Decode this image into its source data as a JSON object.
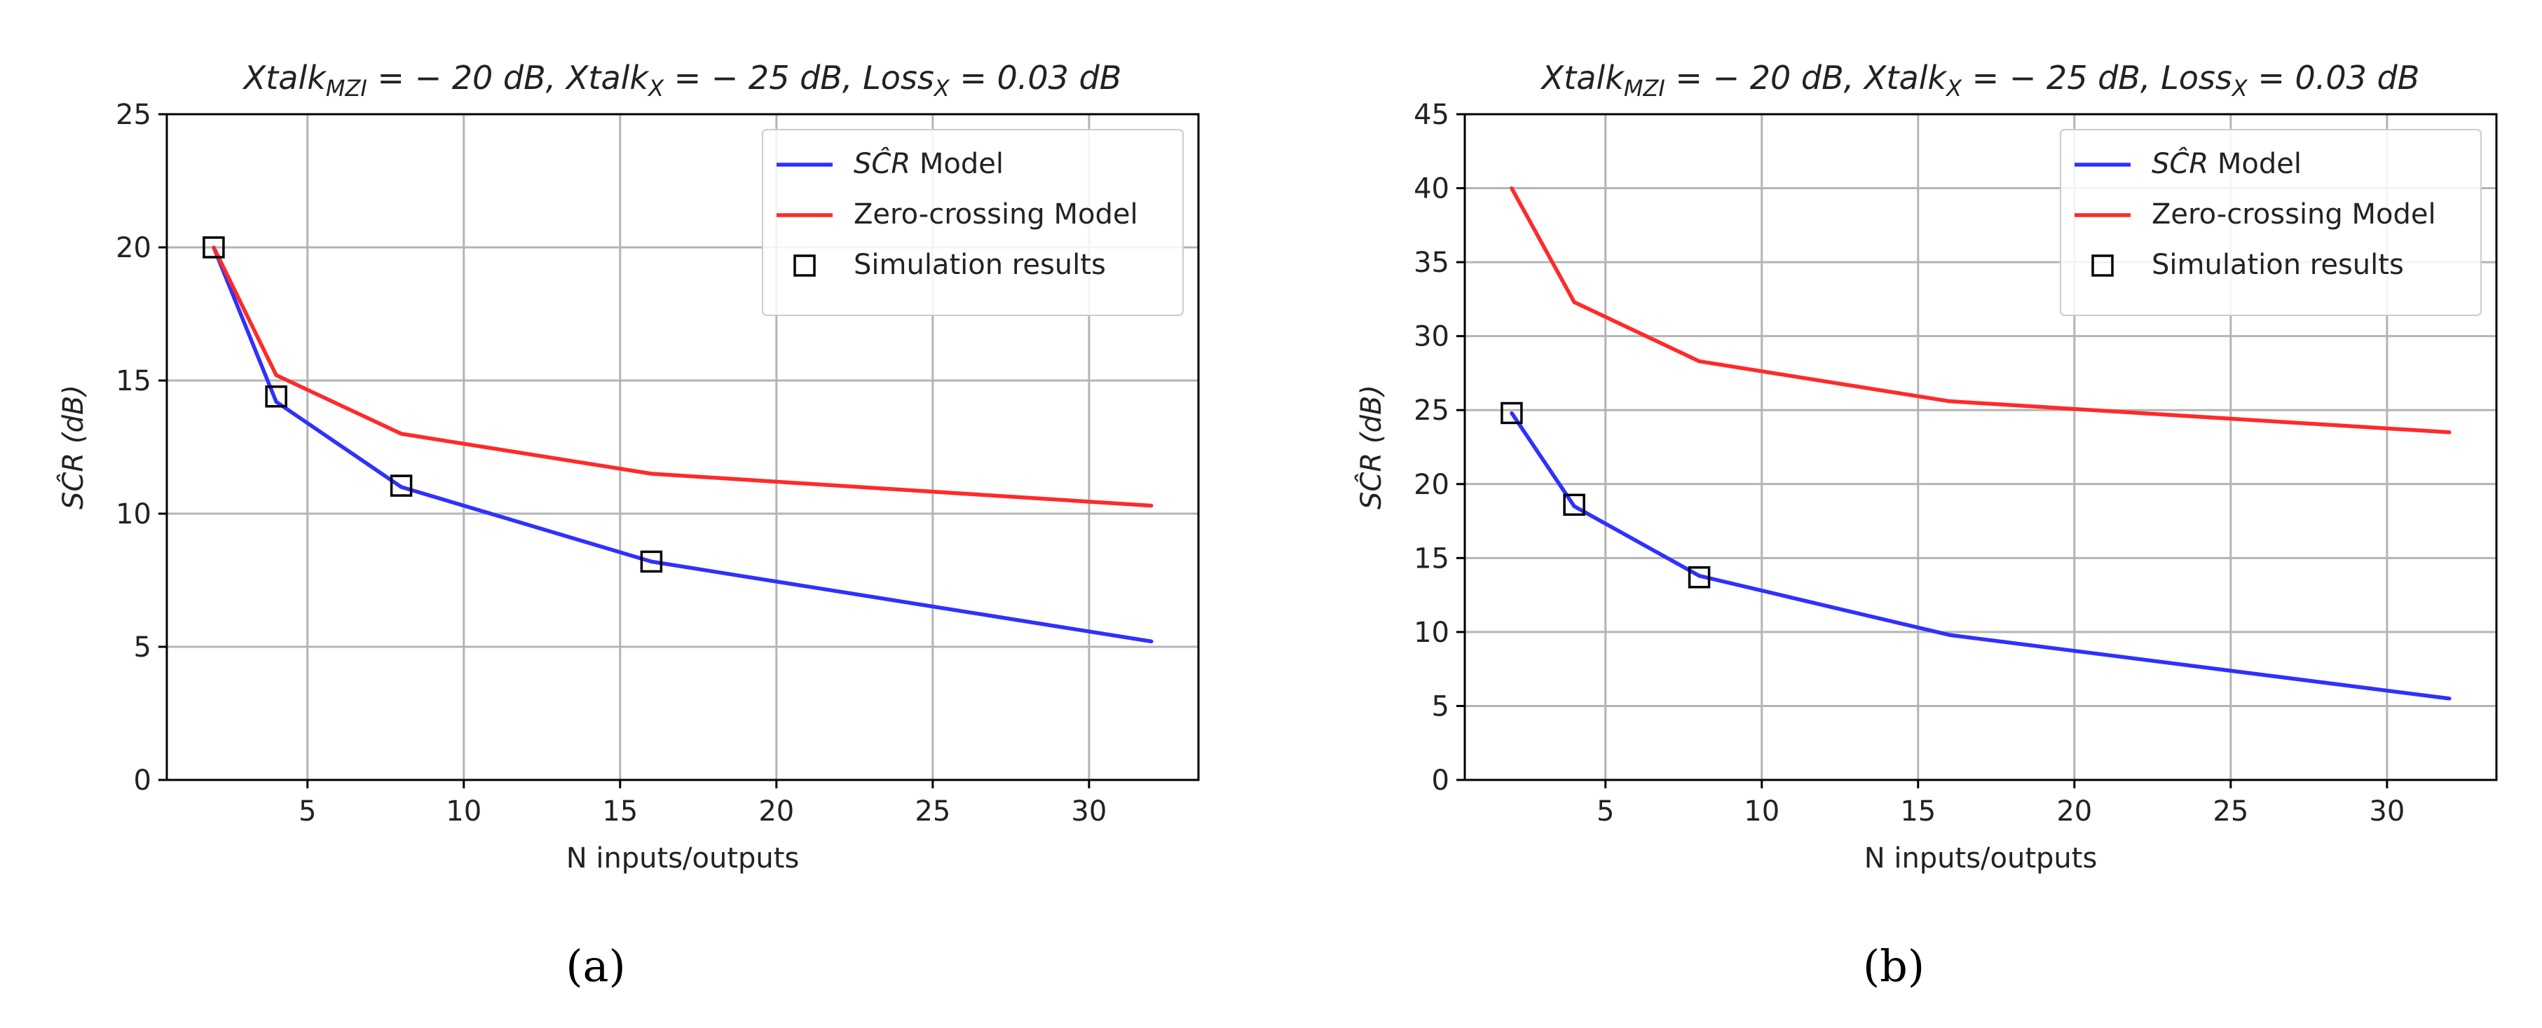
{
  "chart_data": [
    {
      "type": "line",
      "title": "Xtalk_MZI = −20 dB,  Xtalk_X = −25 dB,  Loss_X = 0.03 dB",
      "title_parts": {
        "t1": "Xtalk",
        "s1": "MZI",
        "t2": " = − 20 dB,  Xtalk",
        "s2": "X",
        "t3": " = − 25 dB,  Loss",
        "s3": "X",
        "t4": " = 0.03 dB"
      },
      "xlabel": "N inputs/outputs",
      "ylabel_parts": {
        "main": "SĈR",
        "unit": " (dB)"
      },
      "xlim": [
        0.5,
        33.5
      ],
      "ylim": [
        0,
        25
      ],
      "xticks": [
        5,
        10,
        15,
        20,
        25,
        30
      ],
      "yticks": [
        0,
        5,
        10,
        15,
        20,
        25
      ],
      "grid": true,
      "legend_position": "top-right",
      "series": [
        {
          "name": "SĈR Model",
          "legend_main": "SĈR",
          "legend_rest": " Model",
          "color": "#3030ff",
          "kind": "line",
          "x": [
            2,
            4,
            8,
            16,
            32
          ],
          "y": [
            20.0,
            14.2,
            11.0,
            8.2,
            5.2
          ]
        },
        {
          "name": "Zero-crossing Model",
          "legend_main": "Zero-crossing Model",
          "legend_rest": "",
          "color": "#ff2a2a",
          "kind": "line",
          "x": [
            2,
            4,
            8,
            16,
            32
          ],
          "y": [
            20.0,
            15.2,
            13.0,
            11.5,
            10.3
          ]
        },
        {
          "name": "Simulation results",
          "legend_main": "Simulation results",
          "legend_rest": "",
          "color": "#000000",
          "kind": "marker",
          "x": [
            2,
            4,
            8,
            16
          ],
          "y": [
            20.0,
            14.4,
            11.05,
            8.2
          ]
        }
      ],
      "caption": "(a)"
    },
    {
      "type": "line",
      "title": "Xtalk_MZI = −20 dB,  Xtalk_X = −25 dB,  Loss_X = 0.03 dB",
      "title_parts": {
        "t1": "Xtalk",
        "s1": "MZI",
        "t2": " = − 20 dB,  Xtalk",
        "s2": "X",
        "t3": " = − 25 dB,  Loss",
        "s3": "X",
        "t4": " = 0.03 dB"
      },
      "xlabel": "N inputs/outputs",
      "ylabel_parts": {
        "main": "SĈR",
        "unit": " (dB)"
      },
      "xlim": [
        0.5,
        33.5
      ],
      "ylim": [
        0,
        45
      ],
      "xticks": [
        5,
        10,
        15,
        20,
        25,
        30
      ],
      "yticks": [
        0,
        5,
        10,
        15,
        20,
        25,
        30,
        35,
        40,
        45
      ],
      "grid": true,
      "legend_position": "top-right",
      "series": [
        {
          "name": "SĈR Model",
          "legend_main": "SĈR",
          "legend_rest": " Model",
          "color": "#3030ff",
          "kind": "line",
          "x": [
            2,
            4,
            8,
            16,
            32
          ],
          "y": [
            24.8,
            18.5,
            13.8,
            9.8,
            5.5
          ]
        },
        {
          "name": "Zero-crossing Model",
          "legend_main": "Zero-crossing Model",
          "legend_rest": "",
          "color": "#ff2a2a",
          "kind": "line",
          "x": [
            2,
            4,
            8,
            16,
            32
          ],
          "y": [
            40.0,
            32.3,
            28.3,
            25.6,
            23.5
          ]
        },
        {
          "name": "Simulation results",
          "legend_main": "Simulation results",
          "legend_rest": "",
          "color": "#000000",
          "kind": "marker",
          "x": [
            2,
            4,
            8
          ],
          "y": [
            24.8,
            18.6,
            13.7
          ]
        }
      ],
      "caption": "(b)"
    }
  ]
}
